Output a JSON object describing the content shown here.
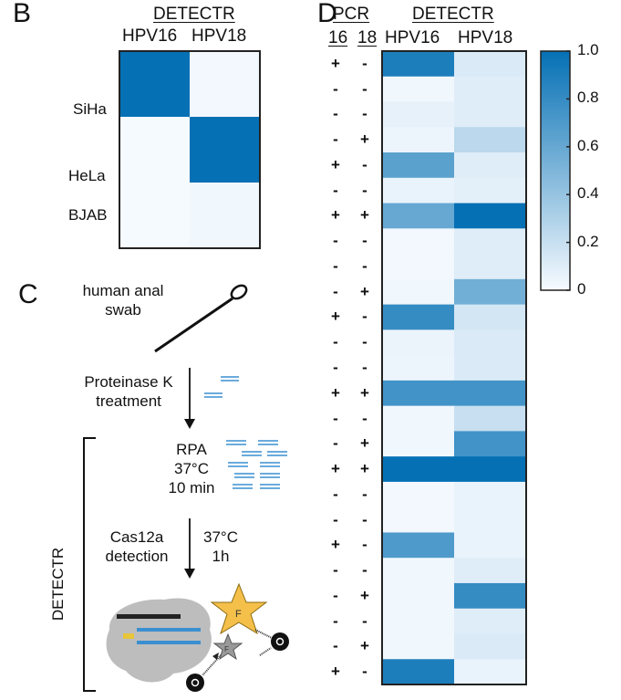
{
  "panels": {
    "b": "B",
    "c": "C",
    "d": "D"
  },
  "colors": {
    "high": "#0570b4",
    "low": "#f7fbff",
    "frame": "#222222",
    "dna": "#3a8fd0"
  },
  "chart_data": [
    {
      "type": "heatmap",
      "header": "DETECTR",
      "columns": [
        "HPV16",
        "HPV18"
      ],
      "rows": [
        "SiHa",
        "HeLa",
        "BJAB"
      ],
      "values": [
        [
          1.0,
          0.02
        ],
        [
          0.01,
          1.0
        ],
        [
          0.01,
          0.03
        ]
      ],
      "zlim": [
        0,
        1
      ]
    },
    {
      "type": "heatmap",
      "header": "DETECTR",
      "pcr_header": "PCR",
      "pcr_columns": [
        "16",
        "18"
      ],
      "columns": [
        "HPV16",
        "HPV18"
      ],
      "pcr": [
        [
          "+",
          "-"
        ],
        [
          "-",
          "-"
        ],
        [
          "-",
          "-"
        ],
        [
          "-",
          "+"
        ],
        [
          "+",
          "-"
        ],
        [
          "-",
          "-"
        ],
        [
          "+",
          "+"
        ],
        [
          "-",
          "-"
        ],
        [
          "-",
          "-"
        ],
        [
          "-",
          "+"
        ],
        [
          "+",
          "-"
        ],
        [
          "-",
          "-"
        ],
        [
          "-",
          "-"
        ],
        [
          "+",
          "+"
        ],
        [
          "-",
          "-"
        ],
        [
          "-",
          "+"
        ],
        [
          "+",
          "+"
        ],
        [
          "-",
          "-"
        ],
        [
          "-",
          "-"
        ],
        [
          "+",
          "-"
        ],
        [
          "-",
          "-"
        ],
        [
          "-",
          "+"
        ],
        [
          "-",
          "-"
        ],
        [
          "-",
          "+"
        ],
        [
          "+",
          "-"
        ]
      ],
      "values": [
        [
          0.9,
          0.12
        ],
        [
          0.03,
          0.1
        ],
        [
          0.07,
          0.1
        ],
        [
          0.04,
          0.25
        ],
        [
          0.65,
          0.1
        ],
        [
          0.06,
          0.08
        ],
        [
          0.6,
          1.0
        ],
        [
          0.02,
          0.1
        ],
        [
          0.02,
          0.1
        ],
        [
          0.03,
          0.55
        ],
        [
          0.8,
          0.15
        ],
        [
          0.05,
          0.12
        ],
        [
          0.04,
          0.12
        ],
        [
          0.75,
          0.75
        ],
        [
          0.03,
          0.2
        ],
        [
          0.03,
          0.75
        ],
        [
          1.0,
          1.0
        ],
        [
          0.02,
          0.06
        ],
        [
          0.02,
          0.06
        ],
        [
          0.7,
          0.06
        ],
        [
          0.03,
          0.1
        ],
        [
          0.03,
          0.8
        ],
        [
          0.03,
          0.1
        ],
        [
          0.03,
          0.12
        ],
        [
          0.9,
          0.06
        ]
      ],
      "colorbar": {
        "ticks": [
          "1.0",
          "0.8",
          "0.6",
          "0.4",
          "0.2",
          "0"
        ],
        "range": [
          0,
          1
        ]
      }
    }
  ],
  "workflow": {
    "swab": "human anal\nswab",
    "step1": "Proteinase K\ntreatment",
    "rpa": "RPA\n37°C\n10 min",
    "cas_left": "Cas12a\ndetection",
    "cas_right": "37°C\n1h",
    "bracket_label": "DETECTR",
    "fluor": "F",
    "quencher": "Q"
  }
}
